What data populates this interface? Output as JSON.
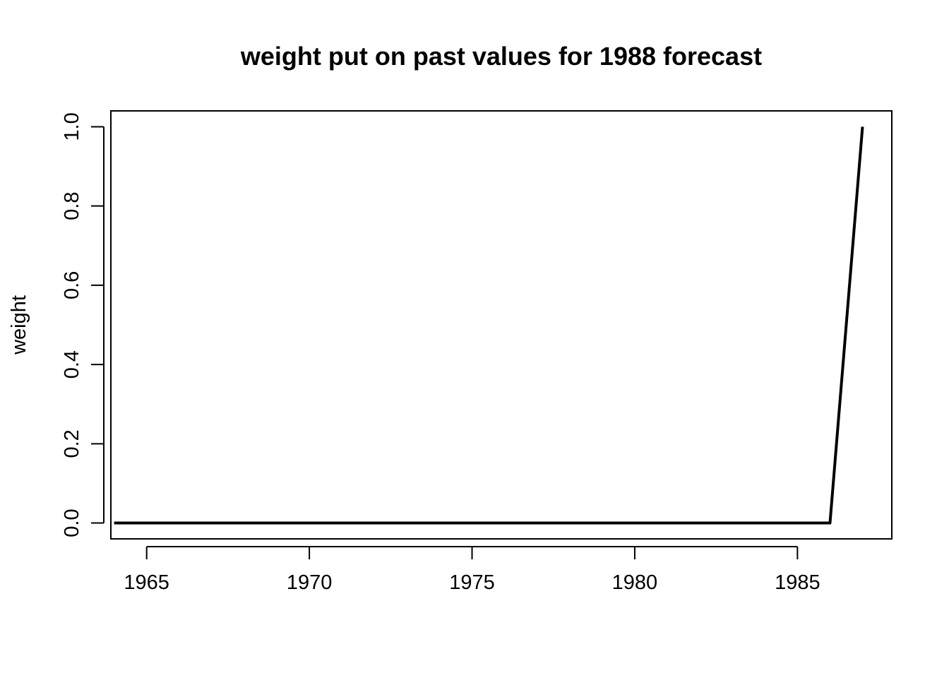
{
  "chart_data": {
    "type": "line",
    "title": "weight put on past values for 1988 forecast",
    "xlabel": "",
    "ylabel": "weight",
    "xlim": [
      1963.9,
      1987.9
    ],
    "ylim": [
      -0.04,
      1.04
    ],
    "x_ticks": [
      1965,
      1970,
      1975,
      1980,
      1985
    ],
    "x_tick_labels": [
      "1965",
      "1970",
      "1975",
      "1980",
      "1985"
    ],
    "y_ticks": [
      0.0,
      0.2,
      0.4,
      0.6,
      0.8,
      1.0
    ],
    "y_tick_labels": [
      "0.0",
      "0.2",
      "0.4",
      "0.6",
      "0.8",
      "1.0"
    ],
    "grid": false,
    "series": [
      {
        "x": [
          1964,
          1965,
          1966,
          1967,
          1968,
          1969,
          1970,
          1971,
          1972,
          1973,
          1974,
          1975,
          1976,
          1977,
          1978,
          1979,
          1980,
          1981,
          1982,
          1983,
          1984,
          1985,
          1986,
          1987
        ],
        "values": [
          0,
          0,
          0,
          0,
          0,
          0,
          0,
          0,
          0,
          0,
          0,
          0,
          0,
          0,
          0,
          0,
          0,
          0,
          0,
          0,
          0,
          0,
          0,
          1.0
        ],
        "color": "#000000"
      }
    ]
  }
}
